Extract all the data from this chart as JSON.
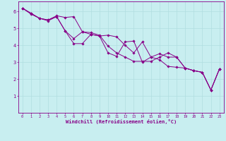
{
  "title": "",
  "xlabel": "Windchill (Refroidissement éolien,°C)",
  "ylabel": "",
  "bg_color": "#c8eef0",
  "line_color": "#880088",
  "marker_color": "#880088",
  "grid_color": "#b0dde0",
  "xlim": [
    -0.5,
    23.5
  ],
  "ylim": [
    0,
    6.6
  ],
  "xticks": [
    0,
    1,
    2,
    3,
    4,
    5,
    6,
    7,
    8,
    9,
    10,
    11,
    12,
    13,
    14,
    15,
    16,
    17,
    18,
    19,
    20,
    21,
    22,
    23
  ],
  "yticks": [
    1,
    2,
    3,
    4,
    5,
    6
  ],
  "lines": [
    [
      6.2,
      5.9,
      5.6,
      5.5,
      5.7,
      4.85,
      4.4,
      4.8,
      4.75,
      4.6,
      3.95,
      3.55,
      3.3,
      3.05,
      3.05,
      3.05,
      3.3,
      3.55,
      3.3,
      2.65,
      2.5,
      2.4,
      1.35,
      2.6
    ],
    [
      6.2,
      5.85,
      5.6,
      5.45,
      5.7,
      4.85,
      4.1,
      4.1,
      4.65,
      4.55,
      3.55,
      3.35,
      4.2,
      4.25,
      3.0,
      3.3,
      3.5,
      3.3,
      3.3,
      2.65,
      2.5,
      2.4,
      1.35,
      2.6
    ],
    [
      6.2,
      5.9,
      5.6,
      5.5,
      5.75,
      5.65,
      5.7,
      4.8,
      4.65,
      4.55,
      4.6,
      4.5,
      4.0,
      3.55,
      4.2,
      3.3,
      3.15,
      2.75,
      2.7,
      2.65,
      2.5,
      2.4,
      1.35,
      2.6
    ]
  ]
}
